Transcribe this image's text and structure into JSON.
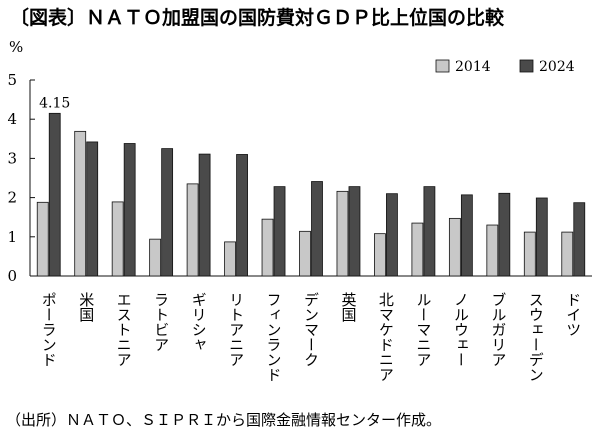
{
  "title": "〔図表〕ＮＡＴＯ加盟国の国防費対ＧＤＰ比上位国の比較",
  "source": "（出所）ＮＡＴＯ、ＳＩＰＲＩから国際金融情報センター作成。",
  "colors": {
    "series_2014": "#c8c8c8",
    "series_2024": "#4a4a4a",
    "stroke": "#111111"
  },
  "chart_data": {
    "type": "bar",
    "title": "〔図表〕ＮＡＴＯ加盟国の国防費対ＧＤＰ比上位国の比較",
    "ylabel": "%",
    "xlabel": "",
    "ylim": [
      0,
      5
    ],
    "yticks": [
      0,
      1,
      2,
      3,
      4,
      5
    ],
    "grid": false,
    "legend": "top-right",
    "categories": [
      "ポーランド",
      "米国",
      "エストニア",
      "ラトビア",
      "ギリシャ",
      "リトアニア",
      "フィンランド",
      "デンマーク",
      "英国",
      "北マケドニア",
      "ルーマニア",
      "ノルウェー",
      "ブルガリア",
      "スウェーデン",
      "ドイツ"
    ],
    "series": [
      {
        "name": "2014",
        "values": [
          1.88,
          3.69,
          1.89,
          0.94,
          2.35,
          0.87,
          1.45,
          1.14,
          2.16,
          1.08,
          1.35,
          1.47,
          1.3,
          1.12,
          1.12
        ]
      },
      {
        "name": "2024",
        "values": [
          4.15,
          3.42,
          3.38,
          3.25,
          3.11,
          3.1,
          2.28,
          2.41,
          2.28,
          2.1,
          2.28,
          2.07,
          2.11,
          1.99,
          1.87
        ]
      }
    ],
    "annotations": [
      {
        "series": 1,
        "index": 0,
        "text": "4.15"
      }
    ]
  }
}
